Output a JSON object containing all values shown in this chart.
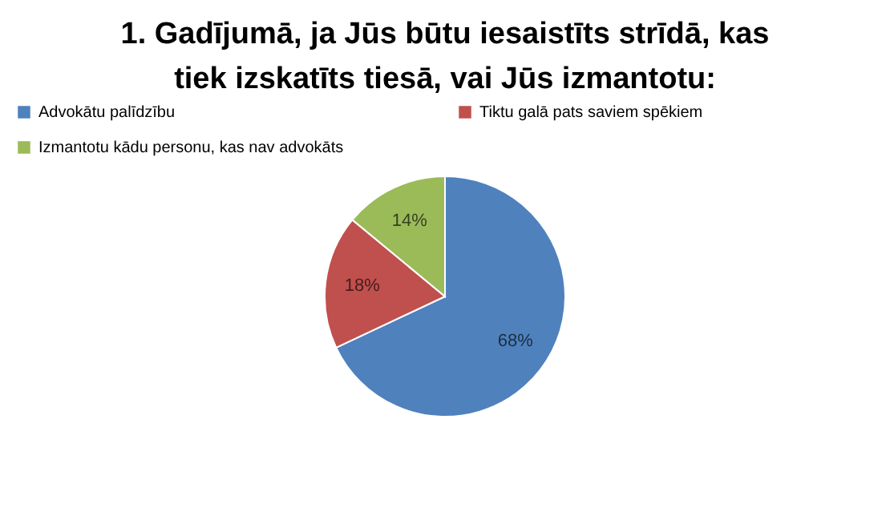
{
  "chart_data": {
    "type": "pie",
    "title": "1. Gadījumā, ja Jūs būtu iesaistīts strīdā, kas tiek izskatīts tiesā, vai Jūs izmantotu:",
    "categories": [
      "Advokātu palīdzību",
      "Tiktu galā pats saviem spēkiem",
      "Izmantotu kādu personu, kas nav advokāts"
    ],
    "values": [
      68,
      18,
      14
    ],
    "colors": [
      "#4f81bd",
      "#c0504d",
      "#9bbb59"
    ],
    "value_labels": [
      "68%",
      "18%",
      "14%"
    ],
    "legend": "top"
  }
}
